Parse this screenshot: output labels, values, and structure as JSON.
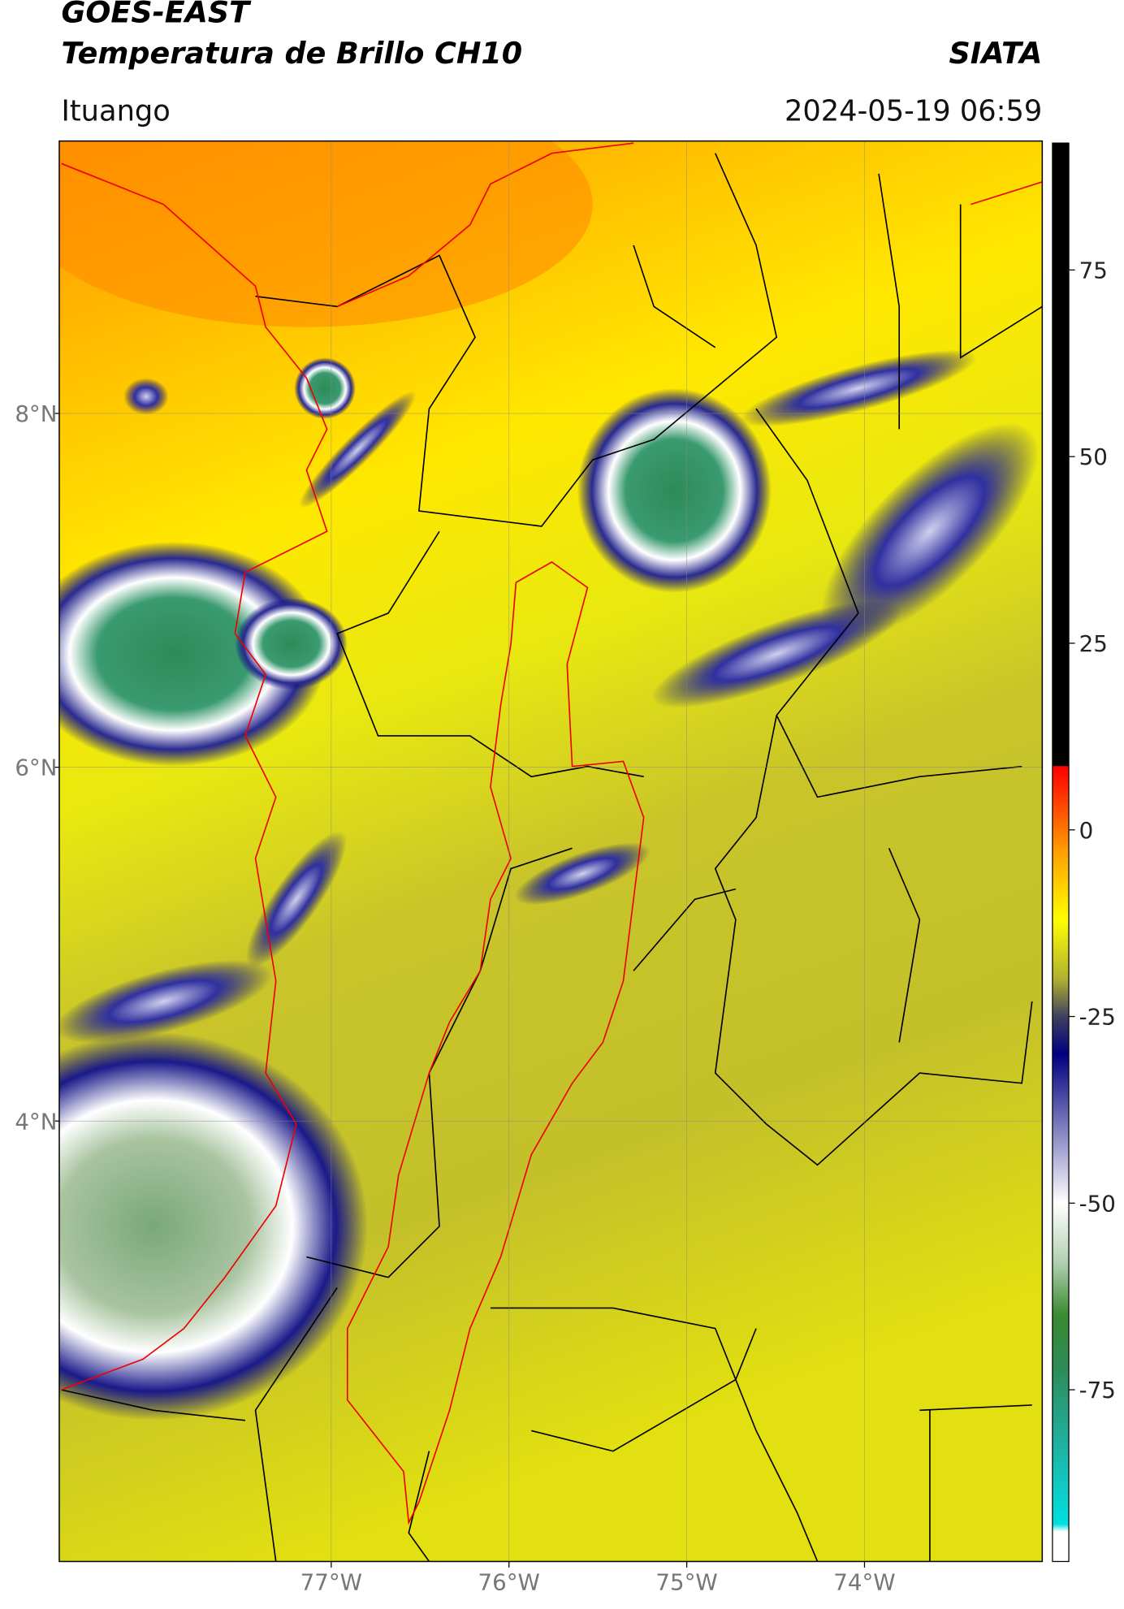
{
  "header": {
    "title": "GOES-EAST",
    "subtitle": "Temperatura de Brillo CH10",
    "source": "SIATA",
    "region": "Ituango",
    "timestamp": "2024-05-19 06:59"
  },
  "map": {
    "xlim": [
      -78.53,
      -73.0
    ],
    "ylim": [
      1.51,
      9.54
    ],
    "grid": true,
    "xticks": [
      {
        "value": -77,
        "label": "77°W"
      },
      {
        "value": -76,
        "label": "76°W"
      },
      {
        "value": -75,
        "label": "75°W"
      },
      {
        "value": -74,
        "label": "74°W"
      }
    ],
    "yticks": [
      {
        "value": 8,
        "label": "8°N"
      },
      {
        "value": 6,
        "label": "6°N"
      },
      {
        "value": 4,
        "label": "4°N"
      }
    ]
  },
  "colorbar": {
    "clim": [
      -98,
      92
    ],
    "ticks": [
      75,
      50,
      25,
      0,
      -25,
      -50,
      -75
    ],
    "stops": [
      {
        "value": -98,
        "color": "#ffffff"
      },
      {
        "value": -94,
        "color": "#ffffff"
      },
      {
        "value": -93,
        "color": "#00e0e0"
      },
      {
        "value": -82,
        "color": "#20b0a0"
      },
      {
        "value": -72,
        "color": "#2e8b57"
      },
      {
        "value": -65,
        "color": "#3a8a30"
      },
      {
        "value": -58,
        "color": "#b0d0b0"
      },
      {
        "value": -50,
        "color": "#ffffff"
      },
      {
        "value": -40,
        "color": "#8080c0"
      },
      {
        "value": -30,
        "color": "#000080"
      },
      {
        "value": -25,
        "color": "#404060"
      },
      {
        "value": -20,
        "color": "#b0b030"
      },
      {
        "value": -12,
        "color": "#ffff00"
      },
      {
        "value": -3,
        "color": "#ffa000"
      },
      {
        "value": 6,
        "color": "#ff2000"
      },
      {
        "value": 8.5,
        "color": "#ff0000"
      },
      {
        "value": 8.6,
        "color": "#000000"
      },
      {
        "value": 92,
        "color": "#000000"
      }
    ]
  }
}
